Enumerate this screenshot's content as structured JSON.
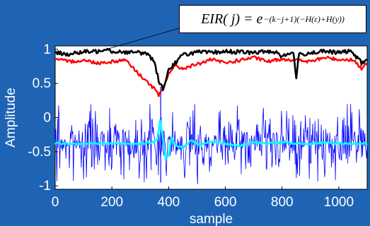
{
  "annotation": {
    "lhs": "EIR( j) = e",
    "exponent": "−(k−j+1)(−H(ε)+H(y))"
  },
  "colors": {
    "background": "#1f63b5",
    "plot_area": "#ffffff",
    "axis_text": "#ffffff",
    "black_series": "#000000",
    "red_series": "#ff0000",
    "blue_series": "#0000ff",
    "cyan_series": "#00ffff"
  },
  "chart_data": {
    "type": "line",
    "xlabel": "sample",
    "ylabel": "Amplitude",
    "xlim": [
      0,
      1100
    ],
    "ylim": [
      -1.05,
      1.05
    ],
    "x_ticks": [
      0,
      200,
      400,
      600,
      800,
      1000
    ],
    "x_tick_labels": [
      "0",
      "200",
      "400",
      "600",
      "800",
      "1000"
    ],
    "y_ticks": [
      1,
      0.5,
      0,
      -0.5,
      -1
    ],
    "y_tick_labels": [
      "1",
      "0.5",
      "0",
      "-0.5",
      "-1"
    ],
    "grid": false,
    "series": [
      {
        "color": "#000000",
        "x": [
          0,
          50,
          100,
          150,
          180,
          200,
          250,
          300,
          330,
          350,
          365,
          380,
          400,
          450,
          500,
          550,
          600,
          650,
          700,
          750,
          780,
          800,
          840,
          850,
          860,
          900,
          950,
          1000,
          1030,
          1050,
          1080,
          1100
        ],
        "y": [
          0.95,
          0.93,
          0.96,
          0.97,
          1.02,
          0.97,
          0.96,
          0.95,
          0.93,
          0.8,
          0.55,
          0.42,
          0.7,
          0.92,
          0.96,
          0.95,
          0.97,
          0.96,
          0.95,
          0.97,
          0.96,
          0.9,
          0.95,
          0.6,
          0.92,
          0.95,
          0.97,
          0.95,
          0.97,
          0.95,
          0.8,
          0.85
        ]
      },
      {
        "color": "#ff0000",
        "x": [
          0,
          50,
          100,
          150,
          200,
          250,
          280,
          300,
          330,
          350,
          365,
          380,
          400,
          420,
          450,
          500,
          550,
          600,
          650,
          700,
          750,
          800,
          850,
          900,
          950,
          1000,
          1050,
          1080,
          1100
        ],
        "y": [
          0.85,
          0.82,
          0.84,
          0.8,
          0.82,
          0.85,
          0.7,
          0.62,
          0.5,
          0.42,
          0.32,
          0.42,
          0.65,
          0.75,
          0.72,
          0.78,
          0.85,
          0.8,
          0.84,
          0.88,
          0.82,
          0.86,
          0.84,
          0.82,
          0.88,
          0.85,
          0.85,
          0.72,
          0.78
        ]
      },
      {
        "color": "#0000ff",
        "noise_like": true,
        "x_range": [
          0,
          1100
        ],
        "center": -0.38,
        "typical_amplitude": 0.35,
        "extremes": [
          -1.0,
          0.2
        ]
      },
      {
        "color": "#00ffff",
        "x": [
          0,
          100,
          200,
          300,
          340,
          360,
          370,
          380,
          390,
          400,
          410,
          420,
          450,
          480,
          500,
          550,
          600,
          650,
          700,
          750,
          800,
          850,
          900,
          950,
          1000,
          1050,
          1100
        ],
        "y": [
          -0.38,
          -0.38,
          -0.38,
          -0.38,
          -0.37,
          -0.32,
          -0.05,
          -0.3,
          -0.62,
          -0.55,
          -0.28,
          -0.4,
          -0.45,
          -0.32,
          -0.4,
          -0.35,
          -0.38,
          -0.42,
          -0.36,
          -0.38,
          -0.36,
          -0.38,
          -0.38,
          -0.37,
          -0.38,
          -0.38,
          -0.38
        ]
      }
    ]
  }
}
